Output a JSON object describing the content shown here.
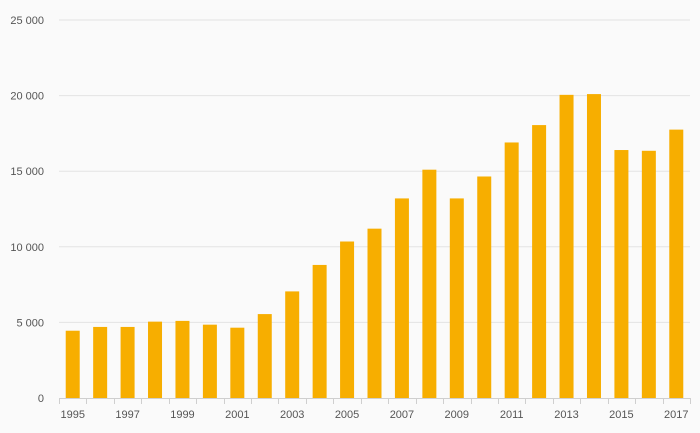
{
  "chart_data": {
    "type": "bar",
    "title": "",
    "xlabel": "",
    "ylabel": "",
    "categories": [
      "1995",
      "1996",
      "1997",
      "1998",
      "1999",
      "2000",
      "2001",
      "2002",
      "2003",
      "2004",
      "2005",
      "2006",
      "2007",
      "2008",
      "2009",
      "2010",
      "2011",
      "2012",
      "2013",
      "2014",
      "2015",
      "2016",
      "2017"
    ],
    "x_tick_labels": [
      "1995",
      "1997",
      "1999",
      "2001",
      "2003",
      "2005",
      "2007",
      "2009",
      "2011",
      "2013",
      "2015",
      "2017"
    ],
    "values": [
      4450,
      4700,
      4700,
      5050,
      5100,
      4850,
      4650,
      5550,
      7050,
      8800,
      10350,
      11200,
      13200,
      15100,
      13200,
      14650,
      16900,
      18050,
      20050,
      20100,
      16400,
      16350,
      17750
    ],
    "ylim": [
      0,
      25000
    ],
    "y_ticks": [
      0,
      5000,
      10000,
      15000,
      20000,
      25000
    ],
    "y_tick_labels": [
      "0",
      "5 000",
      "10 000",
      "15 000",
      "20 000",
      "25 000"
    ],
    "grid": true,
    "legend": "none",
    "bar_color": "#f7ae00"
  }
}
